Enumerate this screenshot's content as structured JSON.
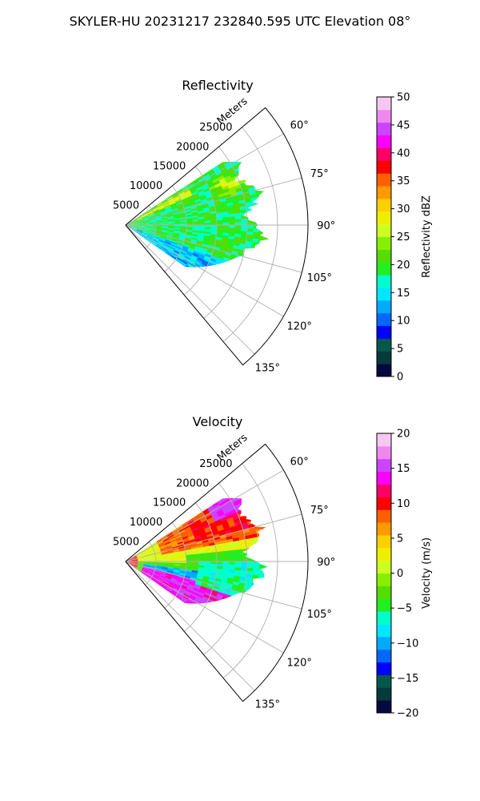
{
  "suptitle": "SKYLER-HU  20231217  232840.595 UTC Elevation 08°",
  "chart_data": [
    {
      "type": "heatmap",
      "subtype": "radar-ppi-sector",
      "title": "Reflectivity",
      "radial_label": "Meters",
      "radial_ticks": [
        5000,
        10000,
        15000,
        20000,
        25000
      ],
      "radial_tick_labels": [
        "5000",
        "10000",
        "15000",
        "20000",
        "25000"
      ],
      "radial_max": 30000,
      "azimuth_range_deg": [
        50,
        140
      ],
      "azimuth_ticks_deg": [
        60,
        75,
        90,
        105,
        120,
        135
      ],
      "azimuth_tick_labels": [
        "60°",
        "75°",
        "90°",
        "105°",
        "120°",
        "135°"
      ],
      "grid": true,
      "colorbar": {
        "label": "Reflectivity dBZ",
        "min": 0,
        "max": 50,
        "ticks": [
          0,
          5,
          10,
          15,
          20,
          25,
          30,
          35,
          40,
          45,
          50
        ],
        "tick_labels": [
          "0",
          "5",
          "10",
          "15",
          "20",
          "25",
          "30",
          "35",
          "40",
          "45",
          "50"
        ],
        "colors": [
          "#040a40",
          "#073a3a",
          "#05584a",
          "#0000ff",
          "#0068ff",
          "#00aaff",
          "#00e6ff",
          "#00ffcc",
          "#22ee22",
          "#55dd00",
          "#88ee00",
          "#ccff22",
          "#eeee00",
          "#ffd000",
          "#ff9a00",
          "#ff6000",
          "#ff0000",
          "#ff0066",
          "#ff00ff",
          "#cc44ff",
          "#ee88ee",
          "#f6c8f0"
        ]
      },
      "sector_summary": {
        "data_azimuth_deg": [
          57,
          125
        ],
        "data_max_range_m": [
          19000,
          23000
        ],
        "dominant_value": 20,
        "max_value": 32
      }
    },
    {
      "type": "heatmap",
      "subtype": "radar-ppi-sector",
      "title": "Velocity",
      "radial_label": "Meters",
      "radial_ticks": [
        5000,
        10000,
        15000,
        20000,
        25000
      ],
      "radial_tick_labels": [
        "5000",
        "10000",
        "15000",
        "20000",
        "25000"
      ],
      "radial_max": 30000,
      "azimuth_range_deg": [
        50,
        140
      ],
      "azimuth_ticks_deg": [
        60,
        75,
        90,
        105,
        120,
        135
      ],
      "azimuth_tick_labels": [
        "60°",
        "75°",
        "90°",
        "105°",
        "120°",
        "135°"
      ],
      "grid": true,
      "colorbar": {
        "label": "Velocity (m/s)",
        "min": -20,
        "max": 20,
        "ticks": [
          -20,
          -15,
          -10,
          -5,
          0,
          5,
          10,
          15,
          20
        ],
        "tick_labels": [
          "−20",
          "−15",
          "−10",
          "−5",
          "0",
          "5",
          "10",
          "15",
          "20"
        ],
        "colors": [
          "#040a40",
          "#073a3a",
          "#05584a",
          "#0000ff",
          "#0068ff",
          "#00aaff",
          "#00e6ff",
          "#00ffcc",
          "#22ee22",
          "#55dd00",
          "#88ee00",
          "#ccff22",
          "#eeee00",
          "#ffd000",
          "#ff9a00",
          "#ff6000",
          "#ff0000",
          "#ff0066",
          "#ff00ff",
          "#cc44ff",
          "#ee88ee",
          "#f6c8f0"
        ]
      },
      "sector_summary": {
        "data_azimuth_deg": [
          57,
          125
        ],
        "data_max_range_m": [
          19000,
          23000
        ],
        "min_value": -12,
        "max_value": 17
      }
    }
  ]
}
